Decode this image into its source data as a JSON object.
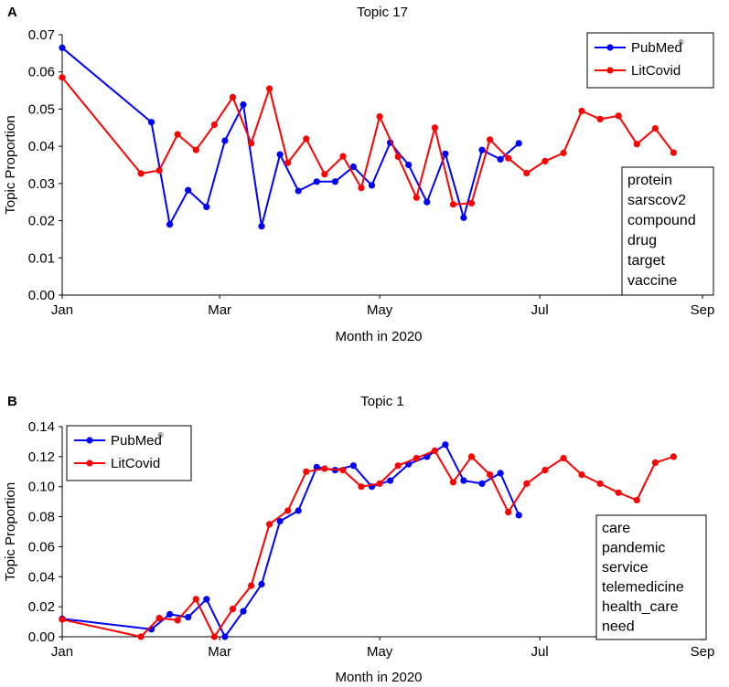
{
  "chart_data": [
    {
      "type": "line",
      "panel_label": "A",
      "title": "Topic 17",
      "xlabel": "Month in 2020",
      "ylabel": "Topic Proportion",
      "x_ticks": [
        "Jan",
        "Mar",
        "May",
        "Jul",
        "Sep"
      ],
      "x_range": [
        "2020-01-01",
        "2020-09-01"
      ],
      "ylim": [
        0,
        0.07
      ],
      "y_ticks": [
        "0.00",
        "0.01",
        "0.02",
        "0.03",
        "0.04",
        "0.05",
        "0.06",
        "0.07"
      ],
      "grid": false,
      "legend_position": "top-right",
      "series": [
        {
          "name": "PubMed",
          "name_superscript": "®",
          "color": "#0000ff",
          "x": [
            "2020-01-01",
            "2020-02-04",
            "2020-02-11",
            "2020-02-18",
            "2020-02-25",
            "2020-03-03",
            "2020-03-10",
            "2020-03-17",
            "2020-03-24",
            "2020-03-31",
            "2020-04-07",
            "2020-04-14",
            "2020-04-21",
            "2020-04-28",
            "2020-05-05",
            "2020-05-12",
            "2020-05-19",
            "2020-05-26",
            "2020-06-02",
            "2020-06-09",
            "2020-06-16",
            "2020-06-23"
          ],
          "y": [
            0.0665,
            0.0465,
            0.019,
            0.0282,
            0.0237,
            0.0415,
            0.0512,
            0.0185,
            0.0378,
            0.028,
            0.0305,
            0.0305,
            0.0345,
            0.0295,
            0.041,
            0.035,
            0.025,
            0.038,
            0.0208,
            0.039,
            0.0365,
            0.0408
          ]
        },
        {
          "name": "LitCovid",
          "color": "#ff0000",
          "x": [
            "2020-01-01",
            "2020-01-31",
            "2020-02-07",
            "2020-02-14",
            "2020-02-21",
            "2020-02-28",
            "2020-03-06",
            "2020-03-13",
            "2020-03-20",
            "2020-03-27",
            "2020-04-03",
            "2020-04-10",
            "2020-04-17",
            "2020-04-24",
            "2020-05-01",
            "2020-05-08",
            "2020-05-15",
            "2020-05-22",
            "2020-05-29",
            "2020-06-05",
            "2020-06-12",
            "2020-06-19",
            "2020-06-26",
            "2020-07-03",
            "2020-07-10",
            "2020-07-17",
            "2020-07-24",
            "2020-07-31",
            "2020-08-07",
            "2020-08-14",
            "2020-08-21"
          ],
          "y": [
            0.0585,
            0.0327,
            0.0335,
            0.0432,
            0.039,
            0.0458,
            0.0532,
            0.0408,
            0.0555,
            0.0356,
            0.042,
            0.0325,
            0.0373,
            0.0288,
            0.048,
            0.0372,
            0.0262,
            0.045,
            0.0244,
            0.0247,
            0.0418,
            0.0368,
            0.0328,
            0.036,
            0.0382,
            0.0495,
            0.0473,
            0.0482,
            0.0406,
            0.0448,
            0.0383
          ]
        }
      ],
      "words": [
        "protein",
        "sarscov2",
        "compound",
        "drug",
        "target",
        "vaccine"
      ]
    },
    {
      "type": "line",
      "panel_label": "B",
      "title": "Topic 1",
      "xlabel": "Month in 2020",
      "ylabel": "Topic Proportion",
      "x_ticks": [
        "Jan",
        "Mar",
        "May",
        "Jul",
        "Sep"
      ],
      "x_range": [
        "2020-01-01",
        "2020-09-01"
      ],
      "ylim": [
        0,
        0.14
      ],
      "y_ticks": [
        "0.00",
        "0.02",
        "0.04",
        "0.06",
        "0.08",
        "0.10",
        "0.12",
        "0.14"
      ],
      "grid": false,
      "legend_position": "top-left",
      "series": [
        {
          "name": "PubMed",
          "name_superscript": "®",
          "color": "#0000ff",
          "x": [
            "2020-01-01",
            "2020-02-04",
            "2020-02-11",
            "2020-02-18",
            "2020-02-25",
            "2020-03-03",
            "2020-03-10",
            "2020-03-17",
            "2020-03-24",
            "2020-03-31",
            "2020-04-07",
            "2020-04-14",
            "2020-04-21",
            "2020-04-28",
            "2020-05-05",
            "2020-05-12",
            "2020-05-19",
            "2020-05-26",
            "2020-06-02",
            "2020-06-09",
            "2020-06-16",
            "2020-06-23"
          ],
          "y": [
            0.012,
            0.005,
            0.015,
            0.013,
            0.025,
            0.0,
            0.017,
            0.035,
            0.077,
            0.084,
            0.113,
            0.111,
            0.114,
            0.1,
            0.104,
            0.115,
            0.12,
            0.128,
            0.104,
            0.102,
            0.109,
            0.081
          ]
        },
        {
          "name": "LitCovid",
          "color": "#ff0000",
          "x": [
            "2020-01-01",
            "2020-01-31",
            "2020-02-07",
            "2020-02-14",
            "2020-02-21",
            "2020-02-28",
            "2020-03-06",
            "2020-03-13",
            "2020-03-20",
            "2020-03-27",
            "2020-04-03",
            "2020-04-10",
            "2020-04-17",
            "2020-04-24",
            "2020-05-01",
            "2020-05-08",
            "2020-05-15",
            "2020-05-22",
            "2020-05-29",
            "2020-06-05",
            "2020-06-12",
            "2020-06-19",
            "2020-06-26",
            "2020-07-03",
            "2020-07-10",
            "2020-07-17",
            "2020-07-24",
            "2020-07-31",
            "2020-08-07",
            "2020-08-14",
            "2020-08-21"
          ],
          "y": [
            0.0115,
            0.0,
            0.0125,
            0.011,
            0.025,
            0.0,
            0.0185,
            0.034,
            0.075,
            0.084,
            0.11,
            0.112,
            0.111,
            0.1,
            0.102,
            0.114,
            0.119,
            0.124,
            0.103,
            0.12,
            0.108,
            0.083,
            0.102,
            0.111,
            0.119,
            0.108,
            0.102,
            0.096,
            0.091,
            0.116,
            0.12
          ]
        }
      ],
      "words": [
        "care",
        "pandemic",
        "service",
        "telemedicine",
        "health_care",
        "need"
      ]
    }
  ]
}
